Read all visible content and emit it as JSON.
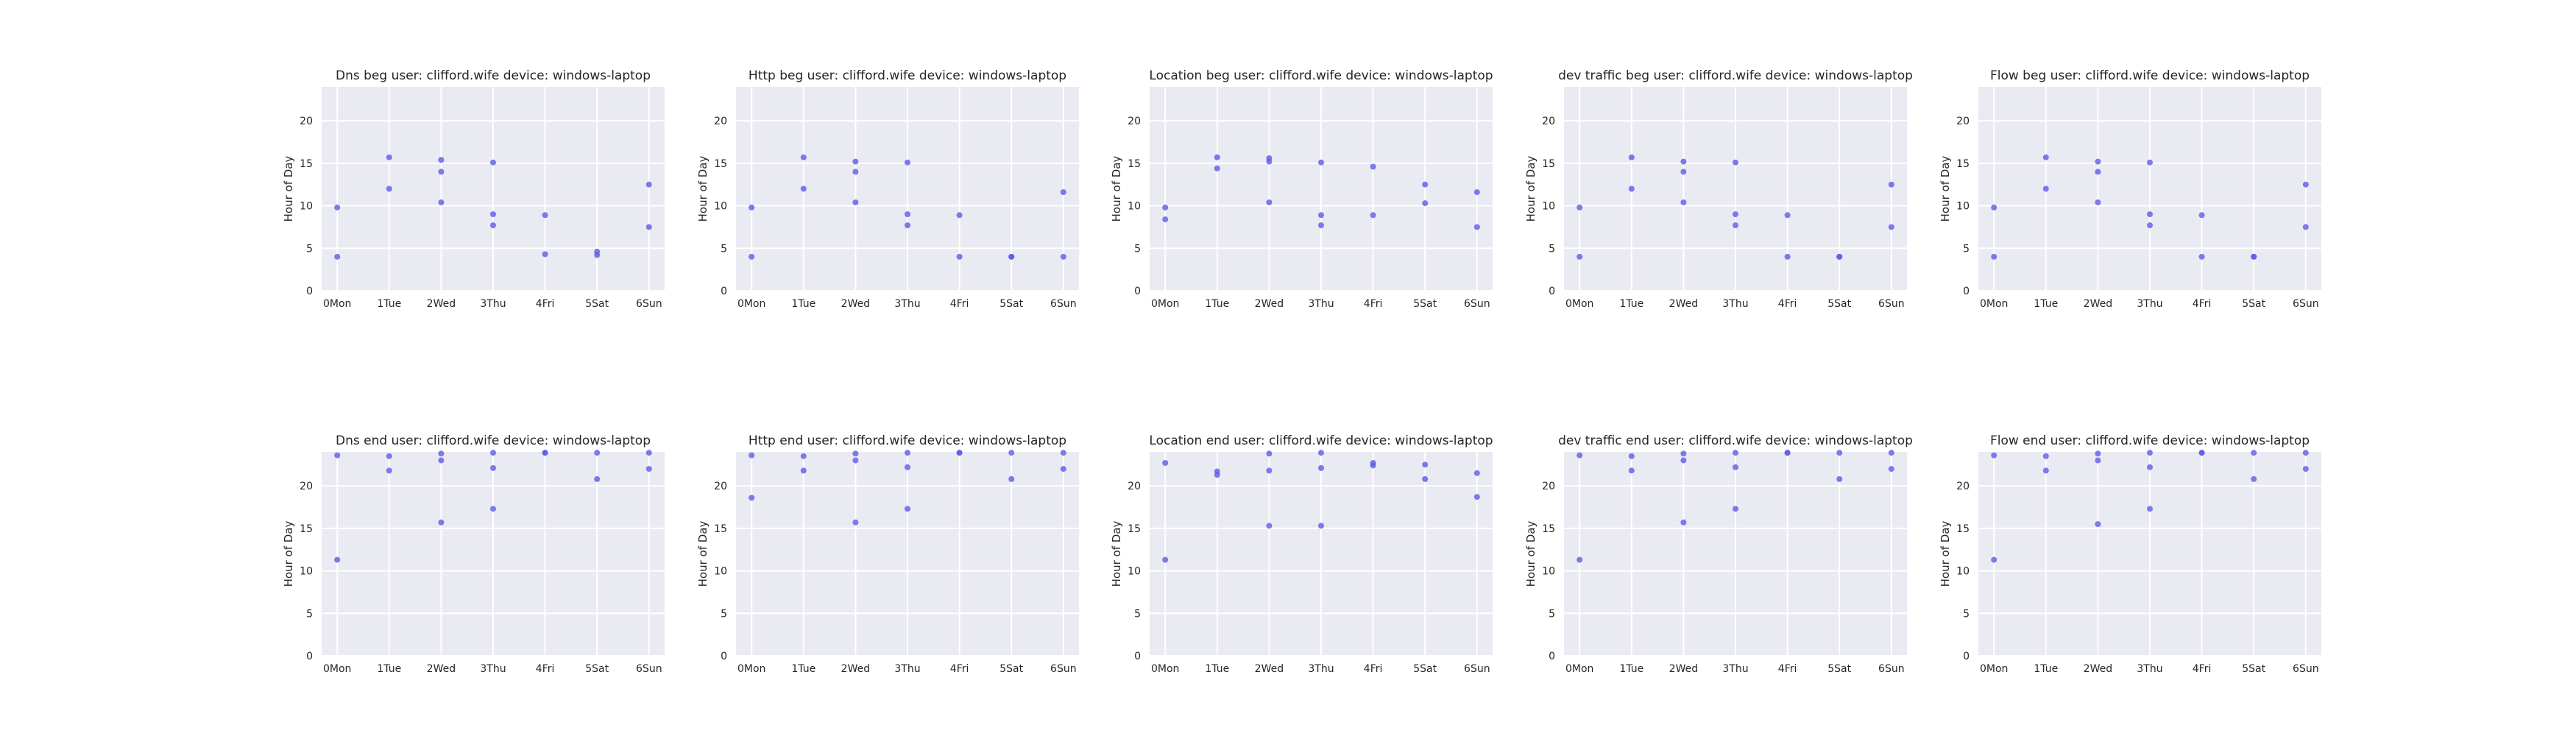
{
  "chart_data": [
    {
      "type": "scatter",
      "title": "Dns beg user: clifford.wife device: windows-laptop",
      "ylabel": "Hour of Day",
      "xticks": [
        "0Mon",
        "1Tue",
        "2Wed",
        "3Thu",
        "4Fri",
        "5Sat",
        "6Sun"
      ],
      "yticks": [
        0,
        5,
        10,
        15,
        20
      ],
      "xlim": [
        -0.3,
        6.3
      ],
      "ylim": [
        0,
        24
      ],
      "grid": true,
      "points": [
        [
          0,
          9.8
        ],
        [
          0,
          4.0
        ],
        [
          1,
          15.7
        ],
        [
          1,
          12.0
        ],
        [
          2,
          15.4
        ],
        [
          2,
          14.0
        ],
        [
          2,
          10.4
        ],
        [
          3,
          15.1
        ],
        [
          3,
          9.0
        ],
        [
          3,
          7.7
        ],
        [
          4,
          8.9
        ],
        [
          4,
          4.3
        ],
        [
          5,
          4.6
        ],
        [
          5,
          4.2
        ],
        [
          6,
          12.5
        ],
        [
          6,
          7.5
        ]
      ]
    },
    {
      "type": "scatter",
      "title": "Http beg user: clifford.wife device: windows-laptop",
      "ylabel": "Hour of Day",
      "xticks": [
        "0Mon",
        "1Tue",
        "2Wed",
        "3Thu",
        "4Fri",
        "5Sat",
        "6Sun"
      ],
      "yticks": [
        0,
        5,
        10,
        15,
        20
      ],
      "xlim": [
        -0.3,
        6.3
      ],
      "ylim": [
        0,
        24
      ],
      "grid": true,
      "points": [
        [
          0,
          9.8
        ],
        [
          0,
          4.0
        ],
        [
          1,
          15.7
        ],
        [
          1,
          12.0
        ],
        [
          2,
          15.2
        ],
        [
          2,
          14.0
        ],
        [
          2,
          10.4
        ],
        [
          3,
          15.1
        ],
        [
          3,
          9.0
        ],
        [
          3,
          7.7
        ],
        [
          4,
          8.9
        ],
        [
          4,
          4.0
        ],
        [
          5,
          4.0
        ],
        [
          5,
          4.0
        ],
        [
          6,
          11.6
        ],
        [
          6,
          4.0
        ]
      ]
    },
    {
      "type": "scatter",
      "title": "Location beg user: clifford.wife device: windows-laptop",
      "ylabel": "Hour of Day",
      "xticks": [
        "0Mon",
        "1Tue",
        "2Wed",
        "3Thu",
        "4Fri",
        "5Sat",
        "6Sun"
      ],
      "yticks": [
        0,
        5,
        10,
        15,
        20
      ],
      "xlim": [
        -0.3,
        6.3
      ],
      "ylim": [
        0,
        24
      ],
      "grid": true,
      "points": [
        [
          0,
          9.8
        ],
        [
          0,
          8.4
        ],
        [
          1,
          15.7
        ],
        [
          1,
          14.4
        ],
        [
          2,
          15.6
        ],
        [
          2,
          15.2
        ],
        [
          2,
          10.4
        ],
        [
          3,
          15.1
        ],
        [
          3,
          8.9
        ],
        [
          3,
          7.7
        ],
        [
          4,
          14.6
        ],
        [
          4,
          8.9
        ],
        [
          5,
          12.5
        ],
        [
          5,
          10.3
        ],
        [
          6,
          11.6
        ],
        [
          6,
          7.5
        ]
      ]
    },
    {
      "type": "scatter",
      "title": "dev traffic beg user: clifford.wife device: windows-laptop",
      "ylabel": "Hour of Day",
      "xticks": [
        "0Mon",
        "1Tue",
        "2Wed",
        "3Thu",
        "4Fri",
        "5Sat",
        "6Sun"
      ],
      "yticks": [
        0,
        5,
        10,
        15,
        20
      ],
      "xlim": [
        -0.3,
        6.3
      ],
      "ylim": [
        0,
        24
      ],
      "grid": true,
      "points": [
        [
          0,
          9.8
        ],
        [
          0,
          4.0
        ],
        [
          1,
          15.7
        ],
        [
          1,
          12.0
        ],
        [
          2,
          15.2
        ],
        [
          2,
          14.0
        ],
        [
          2,
          10.4
        ],
        [
          3,
          15.1
        ],
        [
          3,
          9.0
        ],
        [
          3,
          7.7
        ],
        [
          4,
          8.9
        ],
        [
          4,
          4.0
        ],
        [
          5,
          4.0
        ],
        [
          5,
          4.0
        ],
        [
          6,
          12.5
        ],
        [
          6,
          7.5
        ]
      ]
    },
    {
      "type": "scatter",
      "title": "Flow beg user: clifford.wife device: windows-laptop",
      "ylabel": "Hour of Day",
      "xticks": [
        "0Mon",
        "1Tue",
        "2Wed",
        "3Thu",
        "4Fri",
        "5Sat",
        "6Sun"
      ],
      "yticks": [
        0,
        5,
        10,
        15,
        20
      ],
      "xlim": [
        -0.3,
        6.3
      ],
      "ylim": [
        0,
        24
      ],
      "grid": true,
      "points": [
        [
          0,
          9.8
        ],
        [
          0,
          4.0
        ],
        [
          1,
          15.7
        ],
        [
          1,
          12.0
        ],
        [
          2,
          15.2
        ],
        [
          2,
          14.0
        ],
        [
          2,
          10.4
        ],
        [
          3,
          15.1
        ],
        [
          3,
          9.0
        ],
        [
          3,
          7.7
        ],
        [
          4,
          8.9
        ],
        [
          4,
          4.0
        ],
        [
          5,
          4.0
        ],
        [
          5,
          4.0
        ],
        [
          6,
          12.5
        ],
        [
          6,
          7.5
        ]
      ]
    },
    {
      "type": "scatter",
      "title": "Dns end user: clifford.wife device: windows-laptop",
      "ylabel": "Hour of Day",
      "xticks": [
        "0Mon",
        "1Tue",
        "2Wed",
        "3Thu",
        "4Fri",
        "5Sat",
        "6Sun"
      ],
      "yticks": [
        0,
        5,
        10,
        15,
        20
      ],
      "xlim": [
        -0.3,
        6.3
      ],
      "ylim": [
        0,
        24
      ],
      "grid": true,
      "points": [
        [
          0,
          23.6
        ],
        [
          0,
          11.3
        ],
        [
          1,
          23.5
        ],
        [
          1,
          21.8
        ],
        [
          2,
          23.8
        ],
        [
          2,
          23.0
        ],
        [
          2,
          15.7
        ],
        [
          3,
          23.9
        ],
        [
          3,
          22.1
        ],
        [
          3,
          17.3
        ],
        [
          4,
          23.9
        ],
        [
          4,
          23.9
        ],
        [
          5,
          23.9
        ],
        [
          5,
          20.8
        ],
        [
          6,
          23.9
        ],
        [
          6,
          22.0
        ]
      ]
    },
    {
      "type": "scatter",
      "title": "Http end user: clifford.wife device: windows-laptop",
      "ylabel": "Hour of Day",
      "xticks": [
        "0Mon",
        "1Tue",
        "2Wed",
        "3Thu",
        "4Fri",
        "5Sat",
        "6Sun"
      ],
      "yticks": [
        0,
        5,
        10,
        15,
        20
      ],
      "xlim": [
        -0.3,
        6.3
      ],
      "ylim": [
        0,
        24
      ],
      "grid": true,
      "points": [
        [
          0,
          23.6
        ],
        [
          0,
          18.6
        ],
        [
          1,
          23.5
        ],
        [
          1,
          21.8
        ],
        [
          2,
          23.8
        ],
        [
          2,
          23.0
        ],
        [
          2,
          15.7
        ],
        [
          3,
          23.9
        ],
        [
          3,
          22.2
        ],
        [
          3,
          17.3
        ],
        [
          4,
          23.9
        ],
        [
          4,
          23.9
        ],
        [
          5,
          23.9
        ],
        [
          5,
          20.8
        ],
        [
          6,
          23.9
        ],
        [
          6,
          22.0
        ]
      ]
    },
    {
      "type": "scatter",
      "title": "Location end user: clifford.wife device: windows-laptop",
      "ylabel": "Hour of Day",
      "xticks": [
        "0Mon",
        "1Tue",
        "2Wed",
        "3Thu",
        "4Fri",
        "5Sat",
        "6Sun"
      ],
      "yticks": [
        0,
        5,
        10,
        15,
        20
      ],
      "xlim": [
        -0.3,
        6.3
      ],
      "ylim": [
        0,
        24
      ],
      "grid": true,
      "points": [
        [
          0,
          22.7
        ],
        [
          0,
          11.3
        ],
        [
          1,
          21.7
        ],
        [
          1,
          21.3
        ],
        [
          2,
          23.8
        ],
        [
          2,
          21.8
        ],
        [
          2,
          15.3
        ],
        [
          3,
          23.9
        ],
        [
          3,
          22.1
        ],
        [
          3,
          15.3
        ],
        [
          4,
          22.7
        ],
        [
          4,
          22.4
        ],
        [
          5,
          22.5
        ],
        [
          5,
          20.8
        ],
        [
          6,
          21.5
        ],
        [
          6,
          18.7
        ]
      ]
    },
    {
      "type": "scatter",
      "title": "dev traffic end user: clifford.wife device: windows-laptop",
      "ylabel": "Hour of Day",
      "xticks": [
        "0Mon",
        "1Tue",
        "2Wed",
        "3Thu",
        "4Fri",
        "5Sat",
        "6Sun"
      ],
      "yticks": [
        0,
        5,
        10,
        15,
        20
      ],
      "xlim": [
        -0.3,
        6.3
      ],
      "ylim": [
        0,
        24
      ],
      "grid": true,
      "points": [
        [
          0,
          23.6
        ],
        [
          0,
          11.3
        ],
        [
          1,
          23.5
        ],
        [
          1,
          21.8
        ],
        [
          2,
          23.8
        ],
        [
          2,
          23.0
        ],
        [
          2,
          15.7
        ],
        [
          3,
          23.9
        ],
        [
          3,
          22.2
        ],
        [
          3,
          17.3
        ],
        [
          4,
          23.9
        ],
        [
          4,
          23.9
        ],
        [
          5,
          23.9
        ],
        [
          5,
          20.8
        ],
        [
          6,
          23.9
        ],
        [
          6,
          22.0
        ]
      ]
    },
    {
      "type": "scatter",
      "title": "Flow end user: clifford.wife device: windows-laptop",
      "ylabel": "Hour of Day",
      "xticks": [
        "0Mon",
        "1Tue",
        "2Wed",
        "3Thu",
        "4Fri",
        "5Sat",
        "6Sun"
      ],
      "yticks": [
        0,
        5,
        10,
        15,
        20
      ],
      "xlim": [
        -0.3,
        6.3
      ],
      "ylim": [
        0,
        24
      ],
      "grid": true,
      "points": [
        [
          0,
          23.6
        ],
        [
          0,
          11.3
        ],
        [
          1,
          23.5
        ],
        [
          1,
          21.8
        ],
        [
          2,
          23.8
        ],
        [
          2,
          23.0
        ],
        [
          2,
          15.5
        ],
        [
          3,
          23.9
        ],
        [
          3,
          22.2
        ],
        [
          3,
          17.3
        ],
        [
          4,
          23.9
        ],
        [
          4,
          23.9
        ],
        [
          5,
          23.9
        ],
        [
          5,
          20.8
        ],
        [
          6,
          23.9
        ],
        [
          6,
          22.0
        ]
      ]
    }
  ],
  "colors": {
    "point": "#5b5bea",
    "plot_background": "#eaeaf2",
    "grid": "#ffffff",
    "text": "#262626"
  }
}
